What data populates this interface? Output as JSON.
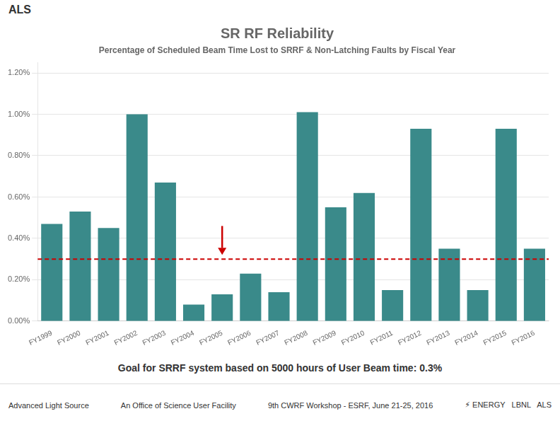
{
  "chart_data": {
    "type": "bar",
    "title": "SR RF Reliability",
    "subtitle": "Percentage of Scheduled Beam Time Lost to SRRF & Non-Latching Faults by Fiscal Year",
    "categories": [
      "FY1999",
      "FY2000",
      "FY2001",
      "FY2002",
      "FY2003",
      "FY2004",
      "FY2005",
      "FY2006",
      "FY2007",
      "FY2008",
      "FY2009",
      "FY2010",
      "FY2011",
      "FY2012",
      "FY2013",
      "FY2014",
      "FY2015",
      "FY2016"
    ],
    "values": [
      0.0047,
      0.0053,
      0.0045,
      0.01,
      0.0067,
      0.0008,
      0.0013,
      0.0023,
      0.0014,
      0.0101,
      0.0055,
      0.0062,
      0.0015,
      0.0093,
      0.0035,
      0.0015,
      0.0093,
      0.0035
    ],
    "color": "#3a8a8a",
    "ylim": [
      0,
      0.0125
    ],
    "yticks": [
      {
        "value": 0.0,
        "label": "0.00%"
      },
      {
        "value": 0.002,
        "label": "0.20%"
      },
      {
        "value": 0.004,
        "label": "0.40%"
      },
      {
        "value": 0.006,
        "label": "0.60%"
      },
      {
        "value": 0.008,
        "label": "0.80%"
      },
      {
        "value": 0.01,
        "label": "1.00%"
      },
      {
        "value": 0.012,
        "label": "1.20%"
      }
    ],
    "grid": true,
    "annotations": [
      {
        "type": "hline",
        "y": 0.003,
        "color": "#cc0000",
        "line_style": "dashed"
      },
      {
        "type": "arrow",
        "x": "FY2005",
        "y_from": 0.0046,
        "y_to": 0.0032,
        "color": "#cc0000"
      },
      {
        "type": "text",
        "text": "Goal for SRRF system based on 5000 hours of User Beam time: 0.3%"
      },
      {
        "type": "header",
        "text": "ALS"
      },
      {
        "type": "footer",
        "text": "Advanced Light Source"
      },
      {
        "type": "footer",
        "text": "An Office of Science User Facility"
      },
      {
        "type": "footer",
        "text": "9th CWRF Workshop - ESRF, June 21-25, 2016"
      },
      {
        "type": "footer",
        "text": "⚡ ENERGY   LBNL   ALS"
      }
    ]
  }
}
